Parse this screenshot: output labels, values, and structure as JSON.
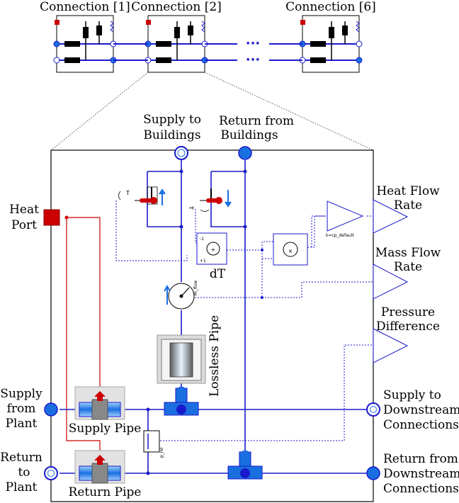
{
  "top_row": {
    "connection_labels": [
      "Connection [1]",
      "Connection [2]",
      "Connection [6]"
    ],
    "ellipsis": "···"
  },
  "ports": {
    "supply_to_buildings": [
      "Supply to",
      "Buildings"
    ],
    "return_from_buildings": [
      "Return from",
      "Buildings"
    ],
    "heat_port": [
      "Heat",
      "Port"
    ],
    "supply_from_plant": [
      "Supply",
      "from",
      "Plant"
    ],
    "return_to_plant": [
      "Return",
      "to",
      "Plant"
    ],
    "supply_to_downstream": [
      "Supply to",
      "Downstream",
      "Connections"
    ],
    "return_from_downstream": [
      "Return from",
      "Downstream",
      "Connections"
    ]
  },
  "outputs": {
    "heat_flow_rate": [
      "Heat Flow",
      "Rate"
    ],
    "mass_flow_rate": [
      "Mass Flow",
      "Rate"
    ],
    "pressure_difference": [
      "Pressure",
      "Difference"
    ]
  },
  "components": {
    "dT_label": "dT",
    "gain_param": "k=cp_default",
    "lossless_pipe": "Lossless Pipe",
    "supply_pipe": "Supply Pipe",
    "return_pipe": "Return Pipe",
    "mflow_label": "m_flow",
    "p_rel_label": "p_rel",
    "temp_label": "T",
    "add_signs": [
      "-1",
      "+1"
    ],
    "add_symbol": "+",
    "mult_symbol": "×"
  },
  "colors": {
    "fluid_line": "#1a1acc",
    "heat_line": "#cc0000",
    "signal_line": "#1a1acc",
    "port_fill": "#1a6fe0",
    "heat_port_fill": "#cc0000"
  }
}
